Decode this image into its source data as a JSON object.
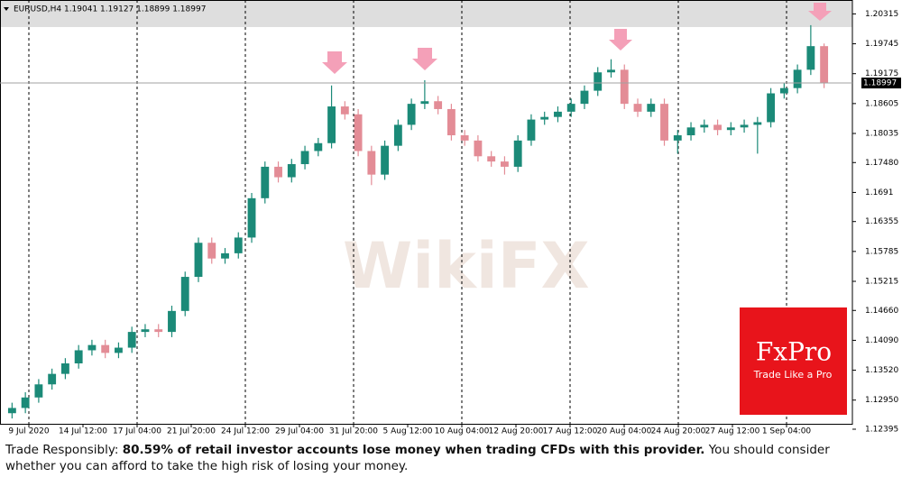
{
  "chart_data": {
    "type": "candlestick",
    "title": "EURUSD,H4  1.19041 1.19127 1.18899 1.18997",
    "up_color": "#1b8a78",
    "down_color": "#e38c96",
    "open": [
      1.127,
      1.128,
      1.13,
      1.1325,
      1.1345,
      1.1365,
      1.139,
      1.14,
      1.1385,
      1.1395,
      1.1425,
      1.143,
      1.1425,
      1.1465,
      1.153,
      1.1595,
      1.1565,
      1.1575,
      1.1605,
      1.168,
      1.174,
      1.172,
      1.1745,
      1.177,
      1.1785,
      1.1855,
      1.184,
      1.177,
      1.1725,
      1.178,
      1.182,
      1.186,
      1.1865,
      1.185,
      1.18,
      1.179,
      1.176,
      1.175,
      1.174,
      1.179,
      1.183,
      1.1835,
      1.1845,
      1.186,
      1.1885,
      1.192,
      1.1925,
      1.186,
      1.1845,
      1.186,
      1.179,
      1.18,
      1.1815,
      1.182,
      1.181,
      1.1815,
      1.182,
      1.1825,
      1.188,
      1.189,
      1.1925,
      1.197
    ],
    "high": [
      1.129,
      1.131,
      1.1335,
      1.1355,
      1.1375,
      1.14,
      1.141,
      1.141,
      1.1405,
      1.1435,
      1.144,
      1.144,
      1.1475,
      1.154,
      1.1605,
      1.1605,
      1.1585,
      1.1615,
      1.169,
      1.175,
      1.175,
      1.1755,
      1.178,
      1.1795,
      1.1895,
      1.1865,
      1.185,
      1.178,
      1.179,
      1.183,
      1.187,
      1.1905,
      1.1875,
      1.186,
      1.181,
      1.18,
      1.177,
      1.176,
      1.18,
      1.184,
      1.1845,
      1.1855,
      1.187,
      1.1895,
      1.193,
      1.1945,
      1.1935,
      1.187,
      1.187,
      1.187,
      1.181,
      1.1825,
      1.183,
      1.183,
      1.1825,
      1.183,
      1.1835,
      1.189,
      1.19,
      1.1935,
      1.201,
      1.1975
    ],
    "low": [
      1.126,
      1.127,
      1.129,
      1.1315,
      1.1335,
      1.1355,
      1.138,
      1.1375,
      1.1375,
      1.1385,
      1.1415,
      1.1415,
      1.1415,
      1.1455,
      1.152,
      1.1555,
      1.1555,
      1.1565,
      1.1595,
      1.167,
      1.171,
      1.171,
      1.1735,
      1.176,
      1.1775,
      1.183,
      1.176,
      1.1705,
      1.1715,
      1.177,
      1.181,
      1.185,
      1.184,
      1.179,
      1.178,
      1.175,
      1.174,
      1.1725,
      1.173,
      1.178,
      1.182,
      1.1825,
      1.1835,
      1.185,
      1.1875,
      1.191,
      1.185,
      1.1835,
      1.1835,
      1.178,
      1.1765,
      1.179,
      1.1805,
      1.18,
      1.18,
      1.1805,
      1.1765,
      1.1815,
      1.187,
      1.188,
      1.1915,
      1.189
    ],
    "close": [
      1.128,
      1.13,
      1.1325,
      1.1345,
      1.1365,
      1.139,
      1.14,
      1.1385,
      1.1395,
      1.1425,
      1.143,
      1.1425,
      1.1465,
      1.153,
      1.1595,
      1.1565,
      1.1575,
      1.1605,
      1.168,
      1.174,
      1.172,
      1.1745,
      1.177,
      1.1785,
      1.1855,
      1.184,
      1.177,
      1.1725,
      1.178,
      1.182,
      1.186,
      1.1865,
      1.185,
      1.18,
      1.179,
      1.176,
      1.175,
      1.174,
      1.179,
      1.183,
      1.1835,
      1.1845,
      1.186,
      1.1885,
      1.192,
      1.1925,
      1.186,
      1.1845,
      1.186,
      1.179,
      1.18,
      1.1815,
      1.182,
      1.181,
      1.1815,
      1.182,
      1.1825,
      1.188,
      1.189,
      1.1925,
      1.197,
      1.19
    ],
    "x_labels": [
      "9 Jul 2020",
      "14 Jul 12:00",
      "17 Jul 04:00",
      "21 Jul 20:00",
      "24 Jul 12:00",
      "29 Jul 04:00",
      "31 Jul 20:00",
      "5 Aug 12:00",
      "10 Aug 04:00",
      "12 Aug 20:00",
      "17 Aug 12:00",
      "20 Aug 04:00",
      "24 Aug 20:00",
      "27 Aug 12:00",
      "1 Sep 04:00"
    ],
    "ylim": [
      1.2058,
      1.1224
    ],
    "yticks": [
      1.20315,
      1.19745,
      1.19175,
      1.18605,
      1.18035,
      {
        "value": 1.1748,
        "label": "1.17480"
      },
      1.1691,
      1.16355,
      1.15785,
      1.15215,
      {
        "value": 1.1466,
        "label": "1.14660"
      },
      {
        "value": 1.1409,
        "label": "1.14090"
      },
      {
        "value": 1.1352,
        "label": "1.13520"
      },
      {
        "value": 1.1295,
        "label": "1.12950"
      },
      1.12395
    ],
    "current_price": 1.18997,
    "watermark": "WikiFX"
  },
  "logo": {
    "brand": "FxPro",
    "tagline": "Trade Like a Pro"
  },
  "footer": {
    "lead": "Trade Responsibly: ",
    "bold": "80.59% of retail investor accounts lose money when trading CFDs with this provider.",
    "rest": " You should consider whether you can afford to take the high risk of losing your money."
  }
}
